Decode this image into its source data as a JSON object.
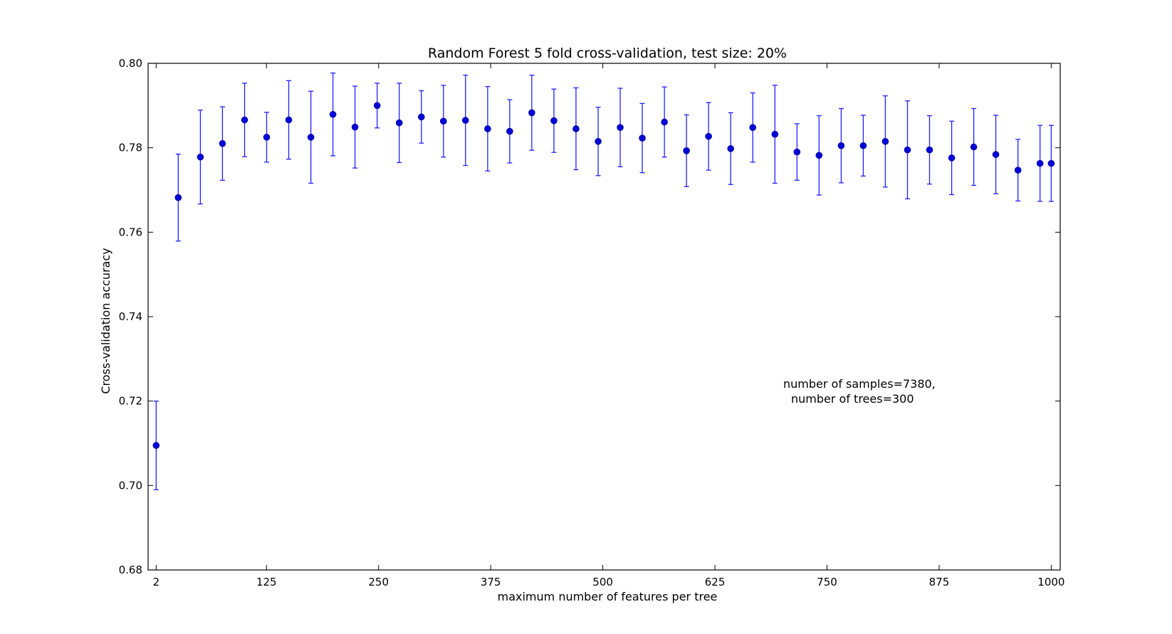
{
  "chart_data": {
    "type": "scatter",
    "title": "Random Forest 5 fold cross-validation, test size: 20%",
    "xlabel": "maximum number of features per tree",
    "ylabel": "Cross-validation accuracy",
    "xlim": [
      -7,
      1010
    ],
    "ylim": [
      0.68,
      0.8
    ],
    "x_ticks": [
      2,
      125,
      250,
      375,
      500,
      625,
      750,
      875,
      1000
    ],
    "x_tick_labels": [
      "2",
      "125",
      "250",
      "375",
      "500",
      "625",
      "750",
      "875",
      "1000"
    ],
    "y_ticks": [
      0.68,
      0.7,
      0.72,
      0.74,
      0.76,
      0.78,
      0.8
    ],
    "y_tick_labels": [
      "0.68",
      "0.70",
      "0.72",
      "0.74",
      "0.76",
      "0.78",
      "0.80"
    ],
    "grid": false,
    "series": [
      {
        "color": "#0000d8",
        "errorbar_color": "#2020ff",
        "x": [
          2,
          26.6,
          51.3,
          75.9,
          100.6,
          125.2,
          149.8,
          174.5,
          199.1,
          223.7,
          248.4,
          273.0,
          297.7,
          322.3,
          346.9,
          371.6,
          396.2,
          420.8,
          445.5,
          470.1,
          494.8,
          519.4,
          544.0,
          568.7,
          593.3,
          617.9,
          642.6,
          667.2,
          691.9,
          716.5,
          741.1,
          765.8,
          790.4,
          815.0,
          839.7,
          864.3,
          889.0,
          913.6,
          938.2,
          962.9,
          987.5,
          1000
        ],
        "y": [
          0.7095,
          0.7682,
          0.7778,
          0.781,
          0.7866,
          0.7825,
          0.7866,
          0.7825,
          0.7879,
          0.7849,
          0.79,
          0.7859,
          0.7873,
          0.7863,
          0.7865,
          0.7845,
          0.7839,
          0.7883,
          0.7864,
          0.7845,
          0.7815,
          0.7848,
          0.7823,
          0.7861,
          0.7793,
          0.7827,
          0.7798,
          0.7848,
          0.7832,
          0.779,
          0.7782,
          0.7805,
          0.7805,
          0.7815,
          0.7795,
          0.7795,
          0.7776,
          0.7802,
          0.7784,
          0.7747,
          0.7763,
          0.7763
        ],
        "yerr": [
          0.0105,
          0.0103,
          0.0111,
          0.0087,
          0.0087,
          0.0059,
          0.0093,
          0.0109,
          0.0098,
          0.0097,
          0.0053,
          0.0094,
          0.0062,
          0.0085,
          0.0107,
          0.01,
          0.0075,
          0.0089,
          0.0075,
          0.0097,
          0.0081,
          0.0093,
          0.0082,
          0.0083,
          0.0085,
          0.008,
          0.0085,
          0.0082,
          0.0116,
          0.0067,
          0.0094,
          0.0088,
          0.0072,
          0.0108,
          0.0116,
          0.0081,
          0.0087,
          0.0091,
          0.0093,
          0.0073,
          0.009,
          0.009
        ]
      }
    ],
    "annotation_lines": [
      "number of samples=7380,",
      "number of trees=300"
    ]
  }
}
